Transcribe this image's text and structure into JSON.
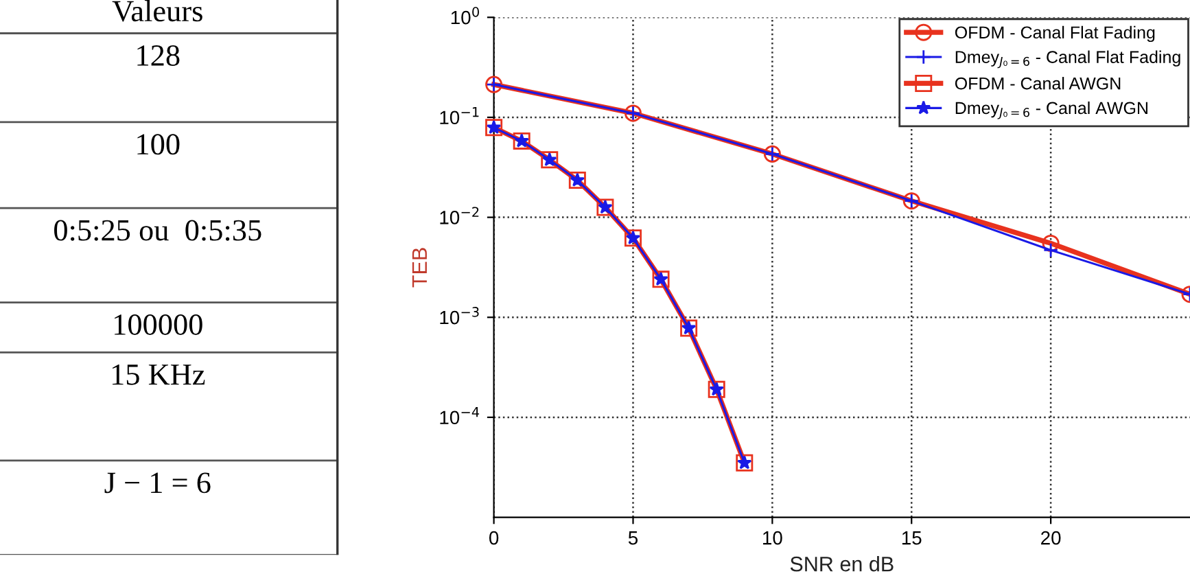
{
  "chart_data": [
    {
      "type": "other",
      "annotations": [
        "Valeurs",
        "128",
        "100",
        "0:5:25 ou  0:5:35",
        "100000",
        "15 KHz",
        "J − 1 = 6"
      ]
    },
    {
      "type": "line",
      "xlabel": "SNR en dB",
      "ylabel": "TEB",
      "log": "y",
      "grid": true,
      "legend": "top right",
      "xlim": [
        0,
        25
      ],
      "xticks": [
        0,
        5,
        10,
        15,
        20
      ],
      "ylim": [
        1e-05,
        1
      ],
      "yticks": [
        {
          "value": 1,
          "label": "10$^{0}$"
        },
        {
          "value": 0.1,
          "label": "10$^{−1}$"
        },
        {
          "value": 0.01,
          "label": "10$^{−2}$"
        },
        {
          "value": 0.001,
          "label": "10$^{−3}$"
        },
        {
          "value": 0.0001,
          "label": "10$^{−4}$"
        }
      ],
      "series": [
        {
          "name": "OFDM - Canal Flat Fading",
          "color": "#e8321e",
          "marker": "circle",
          "x": [
            0,
            5,
            10,
            15,
            20,
            25
          ],
          "values": [
            0.213,
            0.11,
            0.043,
            0.0146,
            0.0055,
            0.0017
          ]
        },
        {
          "name": "Dmey$_{J₀=6}$ - Canal Flat Fading",
          "color": "#1a1ae6",
          "marker": "cross",
          "x": [
            0,
            5,
            10,
            15,
            20,
            25
          ],
          "values": [
            0.213,
            0.11,
            0.043,
            0.0146,
            0.0047,
            0.0017
          ]
        },
        {
          "name": "OFDM - Canal AWGN",
          "color": "#e8321e",
          "marker": "square",
          "x": [
            0,
            1,
            2,
            3,
            4,
            5,
            6,
            7,
            8,
            9
          ],
          "values": [
            0.079,
            0.058,
            0.0376,
            0.0235,
            0.0126,
            0.0062,
            0.0024,
            0.00078,
            0.00019,
            3.5e-05
          ]
        },
        {
          "name": "Dmey$_{J₀=6}$ - Canal AWGN",
          "color": "#1a1ae6",
          "marker": "star",
          "x": [
            0,
            1,
            2,
            3,
            4,
            5,
            6,
            7,
            8,
            9
          ],
          "values": [
            0.079,
            0.058,
            0.0376,
            0.0235,
            0.0126,
            0.0062,
            0.0024,
            0.00078,
            0.00019,
            3.5e-05
          ]
        }
      ]
    }
  ]
}
